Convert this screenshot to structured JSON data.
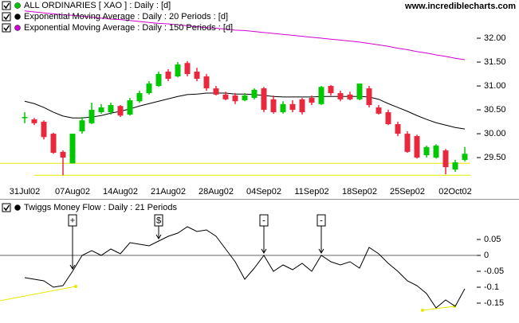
{
  "watermark": "www.incrediblecharts.com",
  "chart_data": [
    {
      "type": "candlestick",
      "name": "ALL ORDINARIES [ XAO ] : Daily : [d]",
      "up_color": "#00c800",
      "down_color": "#e8283c",
      "categories": [
        "31Jul02",
        null,
        null,
        null,
        null,
        "07Aug02",
        null,
        null,
        null,
        null,
        "14Aug02",
        null,
        null,
        null,
        null,
        "21Aug02",
        null,
        null,
        null,
        null,
        "28Aug02",
        null,
        null,
        null,
        null,
        "04Sep02",
        null,
        null,
        null,
        null,
        "11Sep02",
        null,
        null,
        null,
        null,
        "18Sep02",
        null,
        null,
        null,
        null,
        "25Sep02",
        null,
        null,
        null,
        null,
        "02Oct02",
        null
      ],
      "open": [
        30.33,
        30.3,
        30.25,
        30.0,
        29.62,
        29.38,
        30.05,
        30.22,
        30.45,
        30.45,
        30.58,
        30.4,
        30.68,
        30.85,
        31.0,
        31.3,
        31.2,
        31.48,
        31.3,
        31.2,
        30.95,
        30.82,
        30.8,
        30.7,
        30.75,
        30.95,
        30.72,
        30.45,
        30.62,
        30.72,
        30.75,
        30.62,
        31.0,
        30.85,
        30.82,
        30.72,
        30.95,
        30.55,
        30.45,
        30.2,
        30.0,
        29.95,
        29.55,
        29.5,
        29.65,
        29.25,
        29.45
      ],
      "high": [
        30.45,
        30.33,
        30.28,
        30.02,
        29.65,
        30.0,
        30.35,
        30.65,
        30.62,
        30.65,
        30.6,
        30.75,
        30.9,
        31.1,
        31.3,
        31.35,
        31.5,
        31.52,
        31.38,
        31.25,
        31.0,
        30.88,
        30.85,
        30.85,
        30.95,
        30.98,
        30.8,
        30.68,
        30.7,
        30.75,
        30.8,
        31.0,
        31.02,
        30.9,
        30.88,
        31.05,
        31.0,
        30.6,
        30.5,
        30.25,
        30.05,
        29.98,
        29.75,
        29.78,
        29.68,
        29.45,
        29.72
      ],
      "low": [
        30.22,
        30.18,
        29.88,
        29.58,
        29.13,
        29.38,
        30.0,
        30.2,
        30.42,
        30.4,
        30.35,
        30.38,
        30.65,
        30.82,
        30.98,
        31.1,
        31.18,
        31.2,
        31.1,
        30.9,
        30.8,
        30.7,
        30.62,
        30.68,
        30.72,
        30.45,
        30.42,
        30.42,
        30.45,
        30.4,
        30.6,
        30.6,
        30.8,
        30.68,
        30.7,
        30.7,
        30.55,
        30.4,
        30.18,
        29.95,
        29.6,
        29.48,
        29.5,
        29.48,
        29.15,
        29.2,
        29.42
      ],
      "close": [
        30.35,
        30.22,
        29.93,
        29.6,
        29.5,
        30.0,
        30.28,
        30.5,
        30.55,
        30.6,
        30.38,
        30.7,
        30.85,
        31.05,
        31.25,
        31.15,
        31.45,
        31.25,
        31.15,
        30.95,
        30.82,
        30.72,
        30.68,
        30.8,
        30.92,
        30.5,
        30.45,
        30.62,
        30.5,
        30.45,
        30.65,
        30.98,
        30.85,
        30.72,
        30.72,
        31.05,
        30.6,
        30.42,
        30.2,
        30.0,
        29.62,
        29.5,
        29.72,
        29.75,
        29.3,
        29.4,
        29.58
      ],
      "overlays": [
        {
          "name": "Exponential Moving Average : Daily : 20 Periods : [d]",
          "color": "#000000",
          "values": [
            30.68,
            30.63,
            30.55,
            30.45,
            30.37,
            30.33,
            30.33,
            30.35,
            30.38,
            30.43,
            30.47,
            30.52,
            30.58,
            30.63,
            30.68,
            30.73,
            30.78,
            30.82,
            30.83,
            30.85,
            30.85,
            30.85,
            30.83,
            30.83,
            30.82,
            30.8,
            30.78,
            30.77,
            30.77,
            30.77,
            30.77,
            30.78,
            30.78,
            30.78,
            30.78,
            30.78,
            30.77,
            30.72,
            30.63,
            30.55,
            30.47,
            30.38,
            30.3,
            30.23,
            30.18,
            30.13,
            30.1
          ]
        },
        {
          "name": "Exponential Moving Average : Daily : 150 Periods : [d]",
          "color": "#d000d0",
          "values": [
            32.57,
            32.55,
            32.53,
            32.51,
            32.49,
            32.48,
            32.46,
            32.44,
            32.42,
            32.4,
            32.39,
            32.37,
            32.35,
            32.33,
            32.31,
            32.3,
            32.28,
            32.26,
            32.24,
            32.22,
            32.21,
            32.19,
            32.17,
            32.16,
            32.14,
            32.12,
            32.1,
            32.08,
            32.06,
            32.04,
            32.02,
            32.0,
            31.98,
            31.96,
            31.94,
            31.92,
            31.89,
            31.86,
            31.83,
            31.79,
            31.76,
            31.72,
            31.69,
            31.65,
            31.62,
            31.58,
            31.55
          ]
        }
      ],
      "hlines": [
        29.38,
        29.13
      ],
      "hline_color": "#e8e800",
      "ylim": [
        28.935,
        32.8
      ],
      "yticks": [
        {
          "value": 32,
          "label": "32.00"
        },
        {
          "value": 31.5,
          "label": "31.50"
        },
        {
          "value": 31,
          "label": "31.00"
        },
        {
          "value": 30.5,
          "label": "30.50"
        },
        {
          "value": 30,
          "label": "30.00"
        },
        {
          "value": 29.5,
          "label": "29.50"
        }
      ]
    },
    {
      "type": "line",
      "name": "Twiggs Money Flow : Daily : 21 Periods",
      "color": "#000000",
      "values": [
        -0.07,
        -0.075,
        -0.08,
        -0.1,
        -0.095,
        -0.05,
        0,
        0.015,
        0,
        0.02,
        0.005,
        0.04,
        0.035,
        0.03,
        0.045,
        0.06,
        0.07,
        0.09,
        0.075,
        0.08,
        0.06,
        0.02,
        -0.02,
        -0.075,
        -0.04,
        0,
        -0.05,
        -0.03,
        -0.045,
        -0.025,
        -0.05,
        0,
        -0.02,
        -0.03,
        -0.02,
        -0.04,
        0.025,
        0.005,
        -0.025,
        -0.05,
        -0.08,
        -0.095,
        -0.12,
        -0.165,
        -0.14,
        -0.16,
        -0.105
      ],
      "reference_line": 0,
      "signals": [
        {
          "label": "+",
          "index": 5
        },
        {
          "label": "$",
          "index": 14
        },
        {
          "label": "-",
          "index": 25
        },
        {
          "label": "-",
          "index": 31
        }
      ],
      "ylim": [
        -0.2,
        0.13
      ],
      "yticks": [
        0.05,
        0,
        -0.05,
        -0.1,
        -0.15
      ]
    }
  ]
}
